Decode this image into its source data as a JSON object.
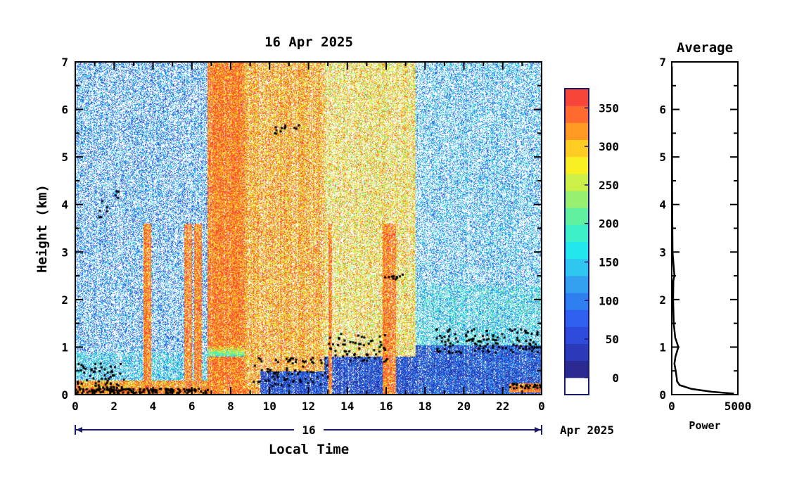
{
  "chart_data": [
    {
      "type": "heatmap",
      "title": "16 Apr 2025",
      "xlabel": "Local Time",
      "ylabel": "Height (km)",
      "xlim": [
        0,
        24
      ],
      "ylim": [
        0,
        7
      ],
      "x_ticks": [
        "0",
        "2",
        "4",
        "6",
        "8",
        "10",
        "12",
        "14",
        "16",
        "18",
        "20",
        "22",
        "0"
      ],
      "y_ticks": [
        "0",
        "1",
        "2",
        "3",
        "4",
        "5",
        "6",
        "7"
      ],
      "date_bar_label": "16",
      "date_suffix": "Apr 2025",
      "colorbar": {
        "ticks": [
          "0",
          "50",
          "100",
          "150",
          "200",
          "250",
          "300",
          "350"
        ],
        "range": [
          0,
          375
        ],
        "colors": [
          "#ffffff",
          "#2a2a90",
          "#2a3ab8",
          "#2f4bdc",
          "#3060f0",
          "#2f7ff0",
          "#34a0f0",
          "#2fc6f0",
          "#22e8ee",
          "#3ef0c8",
          "#60f0a0",
          "#98f070",
          "#cdf048",
          "#f8f022",
          "#ffcc22",
          "#ff9922",
          "#ff6a2e",
          "#f8453a"
        ]
      },
      "features": [
        {
          "name": "surface layer",
          "x_range": [
            0,
            9
          ],
          "top_km": 0.15,
          "level": 360
        },
        {
          "name": "red column",
          "x_range": [
            6.8,
            8.7
          ],
          "top_km": 7,
          "level": 360
        },
        {
          "name": "boundary layer",
          "x_range": [
            9,
            24
          ],
          "top_km": 1.1,
          "level": 60
        },
        {
          "name": "aerosol layer",
          "x_range": [
            18.5,
            23.8
          ],
          "top_km": 1.0,
          "level": 70
        }
      ]
    },
    {
      "type": "line",
      "title": "Average",
      "xlabel": "Power",
      "xlim": [
        0,
        5000
      ],
      "ylim": [
        0,
        7
      ],
      "x_ticks": [
        "0",
        "5000"
      ],
      "y_ticks": [
        "0",
        "1",
        "2",
        "3",
        "4",
        "5",
        "6",
        "7"
      ],
      "series": [
        {
          "x": [
            4700,
            3000,
            1500,
            600,
            400,
            380,
            300,
            200,
            280,
            500,
            260,
            150,
            100,
            120,
            200,
            60,
            30,
            20,
            15,
            10
          ],
          "y": [
            0.02,
            0.06,
            0.12,
            0.2,
            0.28,
            0.35,
            0.5,
            0.65,
            0.8,
            1.0,
            1.2,
            1.5,
            2.0,
            2.4,
            2.5,
            3.0,
            4.0,
            5.0,
            6.0,
            6.9
          ]
        }
      ]
    }
  ]
}
